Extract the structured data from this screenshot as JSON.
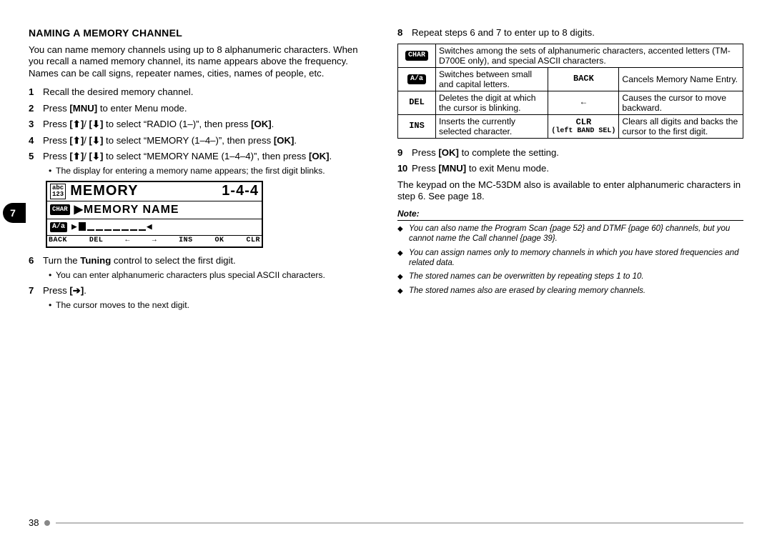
{
  "heading": "NAMING A MEMORY CHANNEL",
  "section_tab": "7",
  "intro": "You can name memory channels using up to 8 alphanumeric characters.  When you recall a named memory channel, its name appears above the frequency.  Names can be call signs, repeater names, cities, names of people, etc.",
  "steps_left": [
    {
      "n": "1",
      "html": "Recall the desired memory channel."
    },
    {
      "n": "2",
      "html": "Press <b>[MNU]</b> to enter Menu mode."
    },
    {
      "n": "3",
      "html": "Press <b>[⬆]</b>/ <b>[⬇]</b> to select “RADIO (1–)”, then press <b>[OK]</b>."
    },
    {
      "n": "4",
      "html": "Press <b>[⬆]</b>/ <b>[⬇]</b> to select “MEMORY (1–4–)”, then press <b>[OK]</b>."
    },
    {
      "n": "5",
      "html": "Press <b>[⬆]</b>/ <b>[⬇]</b> to select “MEMORY NAME (1–4–4)”, then press <b>[OK]</b>.",
      "sub": "The display for entering a memory name appears; the first digit blinks."
    },
    {
      "n": "6",
      "html": "Turn the <b>Tuning</b> control to select the first digit.",
      "sub": "You can enter alphanumeric characters plus special ASCII characters."
    },
    {
      "n": "7",
      "html": "Press <b>[➔]</b>.",
      "sub": "The cursor moves to the next digit."
    }
  ],
  "lcd": {
    "row1_tag": "abc\n123",
    "row1_left": "MEMORY",
    "row1_right": "1-4-4",
    "row2_chip": "CHAR",
    "row2_text": "▶MEMORY NAME",
    "row3_aa": "A/a",
    "row3_left_arrow": "▶",
    "row3_right_arrow": "◀",
    "row4": [
      "BACK",
      "DEL",
      "←",
      "→",
      "INS",
      "OK",
      "CLR"
    ]
  },
  "steps_right_pre": {
    "n": "8",
    "html": "Repeat steps 6 and 7 to enter up to 8 digits."
  },
  "key_table": [
    {
      "icon_html": "<span class='pill'>CHAR</span>",
      "span": 4,
      "desc": "Switches among the sets of alphanumeric characters, accented letters (TM-D700E only), and special ASCII characters."
    },
    {
      "icon_html": "<span class='pill'>A/a</span>",
      "desc": "Switches between small and capital letters.",
      "icon2": "BACK",
      "desc2": "Cancels Memory Name Entry."
    },
    {
      "icon_html": "DEL",
      "desc": "Deletes the digit at which the cursor is blinking.",
      "icon2": "←",
      "desc2": "Causes the cursor to move backward."
    },
    {
      "icon_html": "INS",
      "desc": "Inserts the currently selected character.",
      "icon2": "CLR",
      "sub2": "(left BAND SEL)",
      "desc2": "Clears all digits and backs the cursor to the first digit."
    }
  ],
  "steps_right_post": [
    {
      "n": "9",
      "html": "Press <b>[OK]</b> to complete the setting."
    },
    {
      "n": "10",
      "html": "Press <b>[MNU]</b> to exit Menu mode."
    }
  ],
  "closing": "The keypad on the MC-53DM also is available to enter alphanumeric characters in step 6.  See page 18.",
  "note_heading": "Note:",
  "notes": [
    "You can also name the Program Scan {page 52} and DTMF {page 60} channels, but you cannot name the Call channel {page 39}.",
    "You can assign names only to memory channels in which you have stored frequencies and related data.",
    "The stored names can be overwritten by repeating steps 1 to 10.",
    "The stored names also are erased by clearing memory channels."
  ],
  "page_number": "38"
}
